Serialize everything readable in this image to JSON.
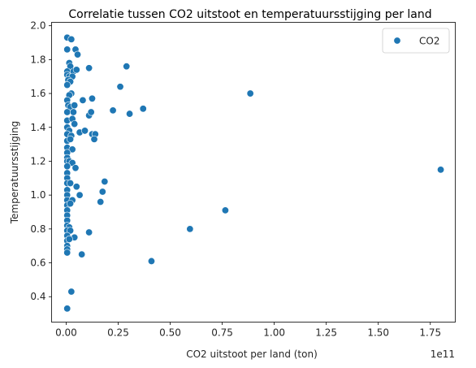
{
  "chart_data": {
    "type": "scatter",
    "title": "Correlatie tussen CO2 uitstoot en temperatuursstijging per land",
    "xlabel": "CO2 uitstoot per land (ton)",
    "ylabel": "Temperatuursstijging",
    "x_offset_label": "1e11",
    "xlim": [
      -0.07,
      1.87
    ],
    "ylim": [
      0.25,
      2.02
    ],
    "x_ticks": [
      0.0,
      0.25,
      0.5,
      0.75,
      1.0,
      1.25,
      1.5,
      1.75
    ],
    "x_tick_labels": [
      "0.00",
      "0.25",
      "0.50",
      "0.75",
      "1.00",
      "1.25",
      "1.50",
      "1.75"
    ],
    "y_ticks": [
      0.4,
      0.6,
      0.8,
      1.0,
      1.2,
      1.4,
      1.6,
      1.8,
      2.0
    ],
    "y_tick_labels": [
      "0.4",
      "0.6",
      "0.8",
      "1.0",
      "1.2",
      "1.4",
      "1.6",
      "1.8",
      "2.0"
    ],
    "grid": false,
    "legend_position": "top-right",
    "color": "#1f77b4",
    "series": [
      {
        "name": "CO2",
        "points": [
          [
            0.005,
            0.33
          ],
          [
            0.025,
            0.43
          ],
          [
            0.005,
            1.93
          ],
          [
            0.025,
            1.92
          ],
          [
            0.005,
            1.86
          ],
          [
            0.045,
            1.86
          ],
          [
            0.055,
            1.83
          ],
          [
            0.015,
            1.78
          ],
          [
            0.02,
            1.76
          ],
          [
            0.005,
            1.73
          ],
          [
            0.035,
            1.73
          ],
          [
            0.05,
            1.74
          ],
          [
            0.005,
            1.71
          ],
          [
            0.015,
            1.7
          ],
          [
            0.03,
            1.7
          ],
          [
            0.01,
            1.68
          ],
          [
            0.02,
            1.67
          ],
          [
            0.005,
            1.65
          ],
          [
            0.025,
            1.6
          ],
          [
            0.015,
            1.59
          ],
          [
            0.005,
            1.56
          ],
          [
            0.01,
            1.53
          ],
          [
            0.02,
            1.52
          ],
          [
            0.04,
            1.53
          ],
          [
            0.005,
            1.49
          ],
          [
            0.035,
            1.49
          ],
          [
            0.005,
            1.44
          ],
          [
            0.03,
            1.45
          ],
          [
            0.04,
            1.42
          ],
          [
            0.005,
            1.4
          ],
          [
            0.015,
            1.38
          ],
          [
            0.005,
            1.36
          ],
          [
            0.025,
            1.35
          ],
          [
            0.005,
            1.32
          ],
          [
            0.02,
            1.33
          ],
          [
            0.005,
            1.28
          ],
          [
            0.03,
            1.27
          ],
          [
            0.005,
            1.25
          ],
          [
            0.005,
            1.22
          ],
          [
            0.005,
            1.2
          ],
          [
            0.015,
            1.2
          ],
          [
            0.03,
            1.19
          ],
          [
            0.005,
            1.17
          ],
          [
            0.045,
            1.16
          ],
          [
            0.005,
            1.13
          ],
          [
            0.005,
            1.1
          ],
          [
            0.005,
            1.07
          ],
          [
            0.02,
            1.07
          ],
          [
            0.05,
            1.05
          ],
          [
            0.005,
            1.03
          ],
          [
            0.005,
            1.0
          ],
          [
            0.065,
            1.0
          ],
          [
            0.005,
            0.97
          ],
          [
            0.03,
            0.97
          ],
          [
            0.005,
            0.94
          ],
          [
            0.02,
            0.95
          ],
          [
            0.005,
            0.91
          ],
          [
            0.005,
            0.88
          ],
          [
            0.005,
            0.85
          ],
          [
            0.005,
            0.82
          ],
          [
            0.015,
            0.81
          ],
          [
            0.005,
            0.79
          ],
          [
            0.02,
            0.79
          ],
          [
            0.005,
            0.76
          ],
          [
            0.04,
            0.75
          ],
          [
            0.005,
            0.73
          ],
          [
            0.015,
            0.74
          ],
          [
            0.005,
            0.7
          ],
          [
            0.005,
            0.68
          ],
          [
            0.005,
            0.66
          ],
          [
            0.075,
            0.65
          ],
          [
            0.11,
            1.75
          ],
          [
            0.125,
            1.57
          ],
          [
            0.08,
            1.56
          ],
          [
            0.11,
            1.47
          ],
          [
            0.12,
            1.49
          ],
          [
            0.065,
            1.37
          ],
          [
            0.09,
            1.38
          ],
          [
            0.125,
            1.36
          ],
          [
            0.14,
            1.36
          ],
          [
            0.135,
            1.33
          ],
          [
            0.185,
            1.08
          ],
          [
            0.175,
            1.02
          ],
          [
            0.165,
            0.96
          ],
          [
            0.11,
            0.78
          ],
          [
            0.225,
            1.5
          ],
          [
            0.26,
            1.64
          ],
          [
            0.29,
            1.76
          ],
          [
            0.305,
            1.48
          ],
          [
            0.37,
            1.51
          ],
          [
            0.41,
            0.61
          ],
          [
            0.595,
            0.8
          ],
          [
            0.765,
            0.91
          ],
          [
            0.885,
            1.6
          ],
          [
            1.8,
            1.15
          ]
        ]
      }
    ]
  }
}
